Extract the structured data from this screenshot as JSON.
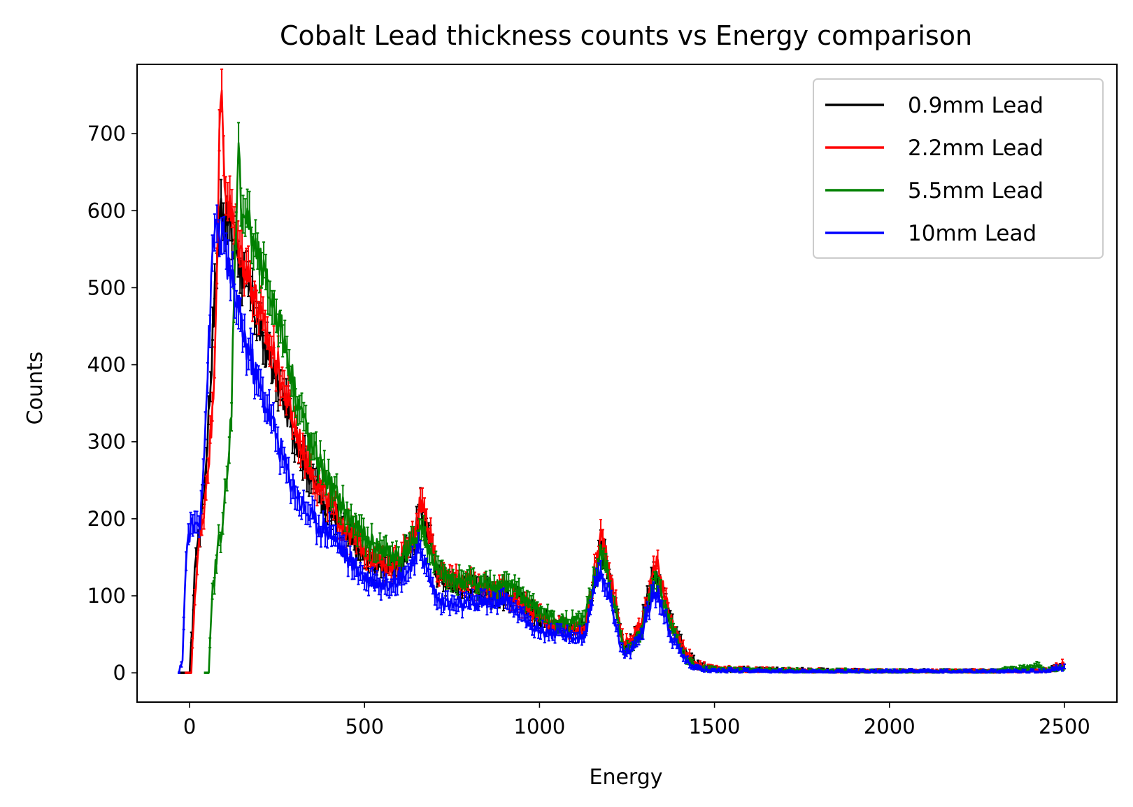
{
  "chart_data": {
    "type": "line",
    "title": "Cobalt Lead thickness counts vs Energy comparison",
    "xlabel": "Energy",
    "ylabel": "Counts",
    "xlim": [
      -150,
      2650
    ],
    "ylim": [
      -38,
      790
    ],
    "xticks": [
      0,
      500,
      1000,
      1500,
      2000,
      2500
    ],
    "yticks": [
      0,
      100,
      200,
      300,
      400,
      500,
      600,
      700
    ],
    "grid": false,
    "legend_position": "top-right",
    "error_bars": true,
    "series": [
      {
        "name": "0.9mm Lead",
        "color": "#000000",
        "points": [
          [
            -30,
            0
          ],
          [
            -12,
            0
          ],
          [
            0,
            0
          ],
          [
            8,
            60
          ],
          [
            18,
            160
          ],
          [
            30,
            185
          ],
          [
            45,
            260
          ],
          [
            60,
            380
          ],
          [
            75,
            520
          ],
          [
            90,
            610
          ],
          [
            100,
            600
          ],
          [
            115,
            580
          ],
          [
            130,
            560
          ],
          [
            150,
            520
          ],
          [
            180,
            480
          ],
          [
            210,
            430
          ],
          [
            250,
            380
          ],
          [
            300,
            310
          ],
          [
            350,
            250
          ],
          [
            400,
            210
          ],
          [
            450,
            175
          ],
          [
            500,
            150
          ],
          [
            550,
            135
          ],
          [
            600,
            138
          ],
          [
            640,
            170
          ],
          [
            660,
            210
          ],
          [
            680,
            185
          ],
          [
            710,
            125
          ],
          [
            750,
            115
          ],
          [
            800,
            108
          ],
          [
            850,
            105
          ],
          [
            900,
            100
          ],
          [
            950,
            90
          ],
          [
            1000,
            70
          ],
          [
            1050,
            62
          ],
          [
            1100,
            58
          ],
          [
            1130,
            60
          ],
          [
            1160,
            130
          ],
          [
            1175,
            168
          ],
          [
            1190,
            150
          ],
          [
            1215,
            90
          ],
          [
            1240,
            35
          ],
          [
            1260,
            38
          ],
          [
            1290,
            60
          ],
          [
            1320,
            115
          ],
          [
            1335,
            130
          ],
          [
            1350,
            110
          ],
          [
            1380,
            60
          ],
          [
            1420,
            25
          ],
          [
            1450,
            10
          ],
          [
            1500,
            5
          ],
          [
            1700,
            3
          ],
          [
            2000,
            2
          ],
          [
            2300,
            2
          ],
          [
            2450,
            3
          ],
          [
            2500,
            8
          ]
        ]
      },
      {
        "name": "2.2mm Lead",
        "color": "#ff0000",
        "points": [
          [
            -10,
            0
          ],
          [
            5,
            0
          ],
          [
            15,
            100
          ],
          [
            25,
            160
          ],
          [
            35,
            185
          ],
          [
            50,
            260
          ],
          [
            65,
            330
          ],
          [
            75,
            470
          ],
          [
            85,
            690
          ],
          [
            92,
            745
          ],
          [
            100,
            640
          ],
          [
            115,
            600
          ],
          [
            130,
            570
          ],
          [
            150,
            540
          ],
          [
            180,
            500
          ],
          [
            210,
            450
          ],
          [
            250,
            400
          ],
          [
            300,
            320
          ],
          [
            350,
            260
          ],
          [
            400,
            220
          ],
          [
            450,
            185
          ],
          [
            500,
            160
          ],
          [
            550,
            140
          ],
          [
            600,
            145
          ],
          [
            640,
            175
          ],
          [
            660,
            225
          ],
          [
            680,
            195
          ],
          [
            710,
            135
          ],
          [
            750,
            120
          ],
          [
            800,
            115
          ],
          [
            850,
            110
          ],
          [
            900,
            105
          ],
          [
            950,
            90
          ],
          [
            1000,
            72
          ],
          [
            1050,
            60
          ],
          [
            1100,
            55
          ],
          [
            1130,
            58
          ],
          [
            1160,
            140
          ],
          [
            1175,
            178
          ],
          [
            1190,
            160
          ],
          [
            1215,
            95
          ],
          [
            1240,
            38
          ],
          [
            1260,
            42
          ],
          [
            1290,
            65
          ],
          [
            1320,
            120
          ],
          [
            1335,
            140
          ],
          [
            1350,
            115
          ],
          [
            1380,
            62
          ],
          [
            1420,
            25
          ],
          [
            1450,
            10
          ],
          [
            1500,
            5
          ],
          [
            1700,
            3
          ],
          [
            2000,
            2
          ],
          [
            2300,
            2
          ],
          [
            2450,
            3
          ],
          [
            2500,
            12
          ]
        ]
      },
      {
        "name": "5.5mm Lead",
        "color": "#008000",
        "points": [
          [
            45,
            0
          ],
          [
            55,
            0
          ],
          [
            65,
            100
          ],
          [
            80,
            160
          ],
          [
            95,
            200
          ],
          [
            110,
            260
          ],
          [
            120,
            350
          ],
          [
            130,
            560
          ],
          [
            140,
            670
          ],
          [
            150,
            600
          ],
          [
            165,
            590
          ],
          [
            180,
            560
          ],
          [
            200,
            530
          ],
          [
            230,
            490
          ],
          [
            260,
            450
          ],
          [
            300,
            370
          ],
          [
            350,
            290
          ],
          [
            400,
            245
          ],
          [
            450,
            205
          ],
          [
            500,
            175
          ],
          [
            550,
            160
          ],
          [
            600,
            150
          ],
          [
            640,
            165
          ],
          [
            660,
            190
          ],
          [
            680,
            165
          ],
          [
            710,
            130
          ],
          [
            750,
            120
          ],
          [
            800,
            118
          ],
          [
            850,
            115
          ],
          [
            900,
            115
          ],
          [
            950,
            100
          ],
          [
            1000,
            80
          ],
          [
            1050,
            68
          ],
          [
            1100,
            65
          ],
          [
            1130,
            68
          ],
          [
            1160,
            130
          ],
          [
            1175,
            155
          ],
          [
            1190,
            140
          ],
          [
            1215,
            85
          ],
          [
            1240,
            30
          ],
          [
            1260,
            34
          ],
          [
            1290,
            55
          ],
          [
            1320,
            110
          ],
          [
            1335,
            125
          ],
          [
            1350,
            100
          ],
          [
            1380,
            55
          ],
          [
            1420,
            18
          ],
          [
            1450,
            6
          ],
          [
            1500,
            4
          ],
          [
            1700,
            3
          ],
          [
            2000,
            2
          ],
          [
            2300,
            2
          ],
          [
            2430,
            10
          ],
          [
            2450,
            3
          ],
          [
            2500,
            6
          ]
        ]
      },
      {
        "name": "10mm Lead",
        "color": "#0000ff",
        "points": [
          [
            -30,
            0
          ],
          [
            -20,
            20
          ],
          [
            -10,
            150
          ],
          [
            0,
            185
          ],
          [
            15,
            190
          ],
          [
            30,
            200
          ],
          [
            45,
            320
          ],
          [
            55,
            430
          ],
          [
            65,
            530
          ],
          [
            75,
            590
          ],
          [
            85,
            570
          ],
          [
            95,
            560
          ],
          [
            105,
            540
          ],
          [
            120,
            510
          ],
          [
            140,
            470
          ],
          [
            160,
            430
          ],
          [
            180,
            400
          ],
          [
            200,
            370
          ],
          [
            240,
            320
          ],
          [
            280,
            260
          ],
          [
            320,
            220
          ],
          [
            360,
            195
          ],
          [
            400,
            185
          ],
          [
            450,
            150
          ],
          [
            500,
            125
          ],
          [
            550,
            115
          ],
          [
            600,
            125
          ],
          [
            640,
            140
          ],
          [
            660,
            165
          ],
          [
            680,
            130
          ],
          [
            710,
            95
          ],
          [
            750,
            88
          ],
          [
            800,
            88
          ],
          [
            850,
            92
          ],
          [
            900,
            95
          ],
          [
            950,
            75
          ],
          [
            1000,
            55
          ],
          [
            1050,
            50
          ],
          [
            1100,
            45
          ],
          [
            1130,
            48
          ],
          [
            1160,
            110
          ],
          [
            1175,
            130
          ],
          [
            1190,
            115
          ],
          [
            1215,
            70
          ],
          [
            1240,
            22
          ],
          [
            1260,
            28
          ],
          [
            1290,
            50
          ],
          [
            1320,
            95
          ],
          [
            1335,
            105
          ],
          [
            1350,
            88
          ],
          [
            1380,
            45
          ],
          [
            1420,
            15
          ],
          [
            1450,
            6
          ],
          [
            1500,
            3
          ],
          [
            1700,
            2
          ],
          [
            2000,
            2
          ],
          [
            2300,
            2
          ],
          [
            2450,
            2
          ],
          [
            2500,
            8
          ]
        ]
      }
    ]
  }
}
